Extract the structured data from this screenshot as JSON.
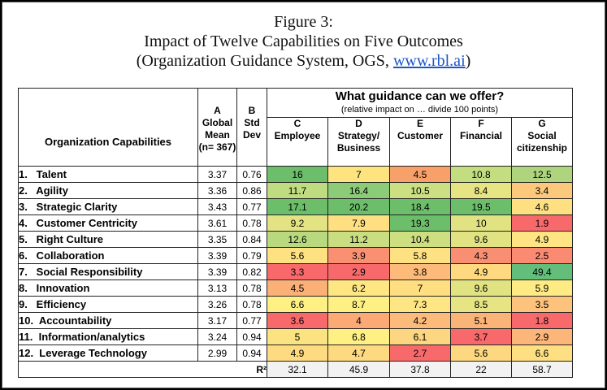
{
  "title": {
    "line1": "Figure 3:",
    "line2": "Impact of Twelve Capabilities on Five Outcomes",
    "line3_pre": "(Organization Guidance System, OGS, ",
    "line3_link": "www.rbl.ai",
    "line3_post": ")"
  },
  "header": {
    "capabilities": "Organization Capabilities",
    "colA": {
      "letter": "A",
      "line1": "Global",
      "line2": "Mean",
      "line3": "(n= 367)"
    },
    "colB": {
      "letter": "B",
      "line1": "Std",
      "line2": "Dev"
    },
    "guidance_title": "What guidance can we offer?",
    "guidance_sub": "(relative impact on … divide 100 points)",
    "outcomes": [
      {
        "letter": "C",
        "line1": "Employee",
        "line2": ""
      },
      {
        "letter": "D",
        "line1": "Strategy/",
        "line2": "Business"
      },
      {
        "letter": "E",
        "line1": "Customer",
        "line2": ""
      },
      {
        "letter": "F",
        "line1": "Financial",
        "line2": ""
      },
      {
        "letter": "G",
        "line1": "Social",
        "line2": "citizenship"
      }
    ],
    "r2_label": "R²"
  },
  "chart_data": {
    "type": "table",
    "columns": [
      "Organization Capabilities",
      "Global Mean (n= 367)",
      "Std Dev",
      "Employee",
      "Strategy/ Business",
      "Customer",
      "Financial",
      "Social citizenship"
    ],
    "rows": [
      {
        "name": "1.   Talent",
        "mean": "3.37",
        "std": "0.76",
        "values": [
          "16",
          "7",
          "4.5",
          "10.8",
          "12.5"
        ]
      },
      {
        "name": "2.   Agility",
        "mean": "3.36",
        "std": "0.86",
        "values": [
          "11.7",
          "16.4",
          "10.5",
          "8.4",
          "3.4"
        ]
      },
      {
        "name": "3.   Strategic Clarity",
        "mean": "3.43",
        "std": "0.77",
        "values": [
          "17.1",
          "20.2",
          "18.4",
          "19.5",
          "4.6"
        ]
      },
      {
        "name": "4.   Customer Centricity",
        "mean": "3.61",
        "std": "0.78",
        "values": [
          "9.2",
          "7.9",
          "19.3",
          "10",
          "1.9"
        ]
      },
      {
        "name": "5.   Right Culture",
        "mean": "3.35",
        "std": "0.84",
        "values": [
          "12.6",
          "11.2",
          "10.4",
          "9.6",
          "4.9"
        ]
      },
      {
        "name": "6.   Collaboration",
        "mean": "3.39",
        "std": "0.79",
        "values": [
          "5.6",
          "3.9",
          "5.8",
          "4.3",
          "2.5"
        ]
      },
      {
        "name": "7.   Social Responsibility",
        "mean": "3.39",
        "std": "0.82",
        "values": [
          "3.3",
          "2.9",
          "3.8",
          "4.9",
          "49.4"
        ]
      },
      {
        "name": "8.   Innovation",
        "mean": "3.13",
        "std": "0.78",
        "values": [
          "4.5",
          "6.2",
          "7",
          "9.6",
          "5.9"
        ]
      },
      {
        "name": "9.   Efficiency",
        "mean": "3.26",
        "std": "0.78",
        "values": [
          "6.6",
          "8.7",
          "7.3",
          "8.5",
          "3.5"
        ]
      },
      {
        "name": "10.  Accountability",
        "mean": "3.17",
        "std": "0.77",
        "values": [
          "3.6",
          "4",
          "4.2",
          "5.1",
          "1.8"
        ]
      },
      {
        "name": "11.  Information/analytics",
        "mean": "3.24",
        "std": "0.94",
        "values": [
          "5",
          "6.8",
          "6.1",
          "3.7",
          "2.9"
        ]
      },
      {
        "name": "12.  Leverage Technology",
        "mean": "2.99",
        "std": "0.94",
        "values": [
          "4.9",
          "4.7",
          "2.7",
          "5.6",
          "6.6"
        ]
      }
    ],
    "r2": [
      "32.1",
      "45.9",
      "37.8",
      "22",
      "58.7"
    ],
    "cell_colors": [
      [
        "#6cbe6a",
        "#fde47f",
        "#f8a06a",
        "#c3dd80",
        "#aed57e"
      ],
      [
        "#c0dc80",
        "#8ccb78",
        "#ccdf82",
        "#e6e483",
        "#fcc87c"
      ],
      [
        "#6cbe6a",
        "#6cbe6a",
        "#6cbe6a",
        "#6cbe6a",
        "#fee082"
      ],
      [
        "#e3e383",
        "#fee082",
        "#6cbe6a",
        "#e1e383",
        "#f8696b"
      ],
      [
        "#b9d97f",
        "#c9de81",
        "#cedf81",
        "#e1e383",
        "#fee482"
      ],
      [
        "#fee282",
        "#f99072",
        "#fee182",
        "#f98f72",
        "#fa8a71"
      ],
      [
        "#f8696b",
        "#f8696b",
        "#fcbb7a",
        "#fed97f",
        "#63be7b"
      ],
      [
        "#fbb077",
        "#fee683",
        "#fede81",
        "#e1e383",
        "#feeb84"
      ],
      [
        "#fff083",
        "#fff083",
        "#fde683",
        "#e6e483",
        "#fdc27c"
      ],
      [
        "#f8696b",
        "#fbaa76",
        "#fcbb7a",
        "#fbb478",
        "#f8696b"
      ],
      [
        "#fbe382",
        "#fff083",
        "#fcd680",
        "#f8696b",
        "#fcb679"
      ],
      [
        "#feda80",
        "#fdd980",
        "#f8696b",
        "#fed881",
        "#fedf82"
      ]
    ],
    "r2_color": "#f2f2f2"
  }
}
